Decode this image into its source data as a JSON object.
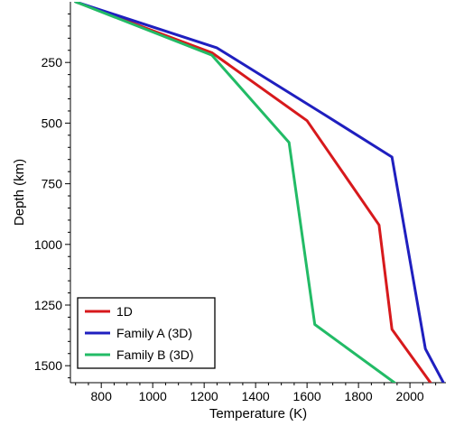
{
  "chart_data": {
    "type": "line",
    "xlabel": "Temperature (K)",
    "ylabel": "Depth (km)",
    "xlim": [
      680,
      2140
    ],
    "ylim": [
      1570,
      0
    ],
    "x_ticks": [
      800,
      1000,
      1200,
      1400,
      1600,
      1800,
      2000
    ],
    "y_ticks": [
      250,
      500,
      750,
      1000,
      1250,
      1500
    ],
    "y_inverted": true,
    "grid": false,
    "legend_position": "bottom-left",
    "series": [
      {
        "name": "1D",
        "color": "#d7191c",
        "points": [
          [
            700,
            0
          ],
          [
            1230,
            210
          ],
          [
            1600,
            490
          ],
          [
            1880,
            920
          ],
          [
            1930,
            1350
          ],
          [
            2080,
            1570
          ]
        ]
      },
      {
        "name": "Family A (3D)",
        "color": "#1f1fbf",
        "points": [
          [
            700,
            0
          ],
          [
            1250,
            190
          ],
          [
            1660,
            460
          ],
          [
            1930,
            640
          ],
          [
            2060,
            1430
          ],
          [
            2130,
            1570
          ]
        ]
      },
      {
        "name": "Family B (3D)",
        "color": "#22bb66",
        "points": [
          [
            700,
            0
          ],
          [
            1230,
            220
          ],
          [
            1530,
            580
          ],
          [
            1630,
            1330
          ],
          [
            1940,
            1570
          ]
        ]
      }
    ]
  }
}
